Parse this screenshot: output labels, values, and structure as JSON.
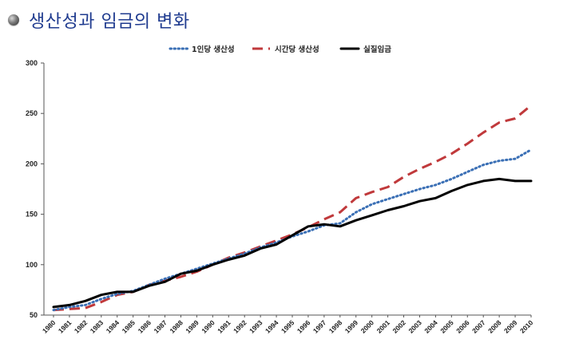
{
  "header": {
    "title": "생산성과 임금의 변화"
  },
  "colors": {
    "title": "#1f3b8f",
    "series_per_capita": "#3a6fb5",
    "series_hourly": "#c0393b",
    "series_wage": "#000000"
  },
  "chart_data": {
    "type": "line",
    "title": "생산성과 임금의 변화",
    "xlabel": "",
    "ylabel": "",
    "ylim": [
      50,
      300
    ],
    "yticks": [
      50,
      100,
      150,
      200,
      250,
      300
    ],
    "grid": false,
    "legend_position": "top-center",
    "x": [
      "1980",
      "1981",
      "1982",
      "1983",
      "1984",
      "1985",
      "1986",
      "1987",
      "1988",
      "1989",
      "1990",
      "1991",
      "1992",
      "1993",
      "1994",
      "1995",
      "1996",
      "1997",
      "1998",
      "1999",
      "2000",
      "2001",
      "2002",
      "2003",
      "2004",
      "2005",
      "2006",
      "2007",
      "2008",
      "2009",
      "2010"
    ],
    "series": [
      {
        "name": "1인당 생산성",
        "style": "dotted",
        "color": "#3a6fb5",
        "values": [
          55,
          58,
          60,
          66,
          71,
          74,
          80,
          86,
          91,
          96,
          101,
          106,
          111,
          117,
          122,
          128,
          133,
          139,
          141,
          152,
          160,
          165,
          170,
          175,
          179,
          185,
          192,
          199,
          203,
          205,
          214
        ]
      },
      {
        "name": "시간당 생산성",
        "style": "dashed",
        "color": "#c0393b",
        "values": [
          55,
          56,
          57,
          63,
          70,
          73,
          80,
          84,
          88,
          93,
          100,
          107,
          112,
          118,
          124,
          130,
          137,
          145,
          152,
          166,
          172,
          177,
          187,
          195,
          202,
          210,
          220,
          231,
          241,
          245,
          258
        ]
      },
      {
        "name": "실질임금",
        "style": "solid",
        "color": "#000000",
        "values": [
          58,
          60,
          64,
          70,
          73,
          73,
          79,
          83,
          91,
          94,
          100,
          105,
          109,
          116,
          120,
          129,
          138,
          140,
          138,
          144,
          149,
          154,
          158,
          163,
          166,
          173,
          179,
          183,
          185,
          183,
          183
        ]
      }
    ]
  }
}
